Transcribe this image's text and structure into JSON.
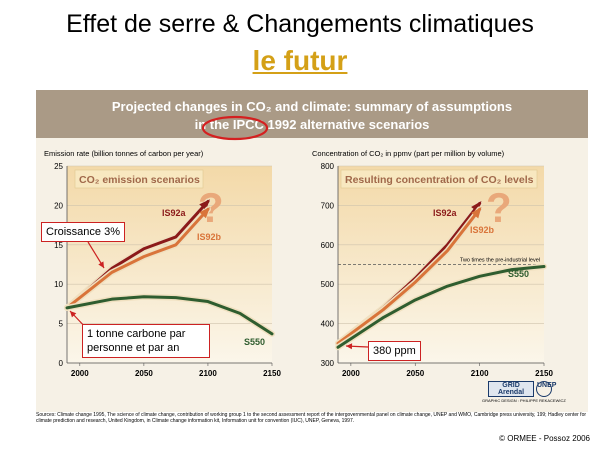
{
  "slide": {
    "title": "Effet de serre & Changements climatiques",
    "subtitle": "le futur",
    "figure_title_line1": "Projected changes in CO₂ and climate: summary of assumptions",
    "figure_title_line2": "in the IPCC 1992 alternative scenarios",
    "callouts": {
      "growth": "Croissance 3%",
      "per_capita": "1 tonne carbone par personne et par an",
      "ppm": "380 ppm"
    },
    "sources": "Sources: Climate change 1995, The science of climate change, contribution of working group 1 to the second assessment report of the intergovernmental panel on climate change, UNEP and WMO, Cambridge press university, 199; Hadley center for climate prediction and research, United Kingdom, in Climate change information kit, Information unit for convention (IUC), UNEP, Geneva, 1997.",
    "copyright": "© ORMEE - Possoz 2006",
    "logos": {
      "grid": "GRID Arendal",
      "unep": "UNEP",
      "credit": "GRAPHIC DESIGN : PHILIPPE REKACEWICZ"
    },
    "colors": {
      "title_accent": "#d4a017",
      "callout_border": "#cc2222",
      "banner": "#aa9a86",
      "panel_background": "#f6f1e6",
      "chart_gradient_top": "#f3d9a8",
      "question_mark": "#e9a87a",
      "series_is92a": "#8b1a1a",
      "series_is92b": "#d9743a",
      "series_s550": "#2f5d2f",
      "reference_line": "#555555"
    },
    "icons": [
      "question-mark-icon",
      "callout-arrow-icon"
    ]
  },
  "chart_data": [
    {
      "type": "line",
      "ylabel": "Emission rate (billion tonnes of carbon per year)",
      "panel_label": "CO₂ emission scenarios",
      "annotation": "?",
      "xlim": [
        1990,
        2150
      ],
      "ylim": [
        0,
        25
      ],
      "xticks": [
        "2000",
        "2050",
        "2100",
        "2150"
      ],
      "yticks": [
        "0",
        "5",
        "10",
        "15",
        "20",
        "25"
      ],
      "grid": true,
      "series": [
        {
          "name": "IS92a",
          "x": [
            1990,
            2025,
            2050,
            2075,
            2100
          ],
          "y": [
            7,
            12,
            14.5,
            16,
            20.5
          ]
        },
        {
          "name": "IS92b",
          "x": [
            1990,
            2025,
            2050,
            2075,
            2100
          ],
          "y": [
            7,
            11.5,
            13.5,
            15,
            19.5
          ]
        },
        {
          "name": "S550",
          "x": [
            1990,
            2025,
            2050,
            2075,
            2100,
            2125,
            2150
          ],
          "y": [
            7,
            8.1,
            8.4,
            8.3,
            7.8,
            6.3,
            3.7
          ]
        }
      ]
    },
    {
      "type": "line",
      "ylabel": "Concentration of CO₂ in ppmv (part per million by volume)",
      "panel_label": "Resulting concentration of CO₂ levels",
      "annotation": "?",
      "reference_label": "Two times the pre-industrial level",
      "reference_value": 550,
      "xlim": [
        1990,
        2150
      ],
      "ylim": [
        300,
        800
      ],
      "xticks": [
        "2000",
        "2050",
        "2100",
        "2150"
      ],
      "yticks": [
        "300",
        "400",
        "500",
        "600",
        "700",
        "800"
      ],
      "grid": true,
      "series": [
        {
          "name": "IS92a",
          "x": [
            1990,
            2025,
            2050,
            2075,
            2100
          ],
          "y": [
            350,
            440,
            515,
            600,
            705
          ]
        },
        {
          "name": "IS92b",
          "x": [
            1990,
            2025,
            2050,
            2075,
            2100
          ],
          "y": [
            350,
            435,
            505,
            585,
            690
          ]
        },
        {
          "name": "S550",
          "x": [
            1990,
            2025,
            2050,
            2075,
            2100,
            2125,
            2150
          ],
          "y": [
            340,
            415,
            460,
            495,
            520,
            537,
            545
          ]
        }
      ]
    }
  ]
}
